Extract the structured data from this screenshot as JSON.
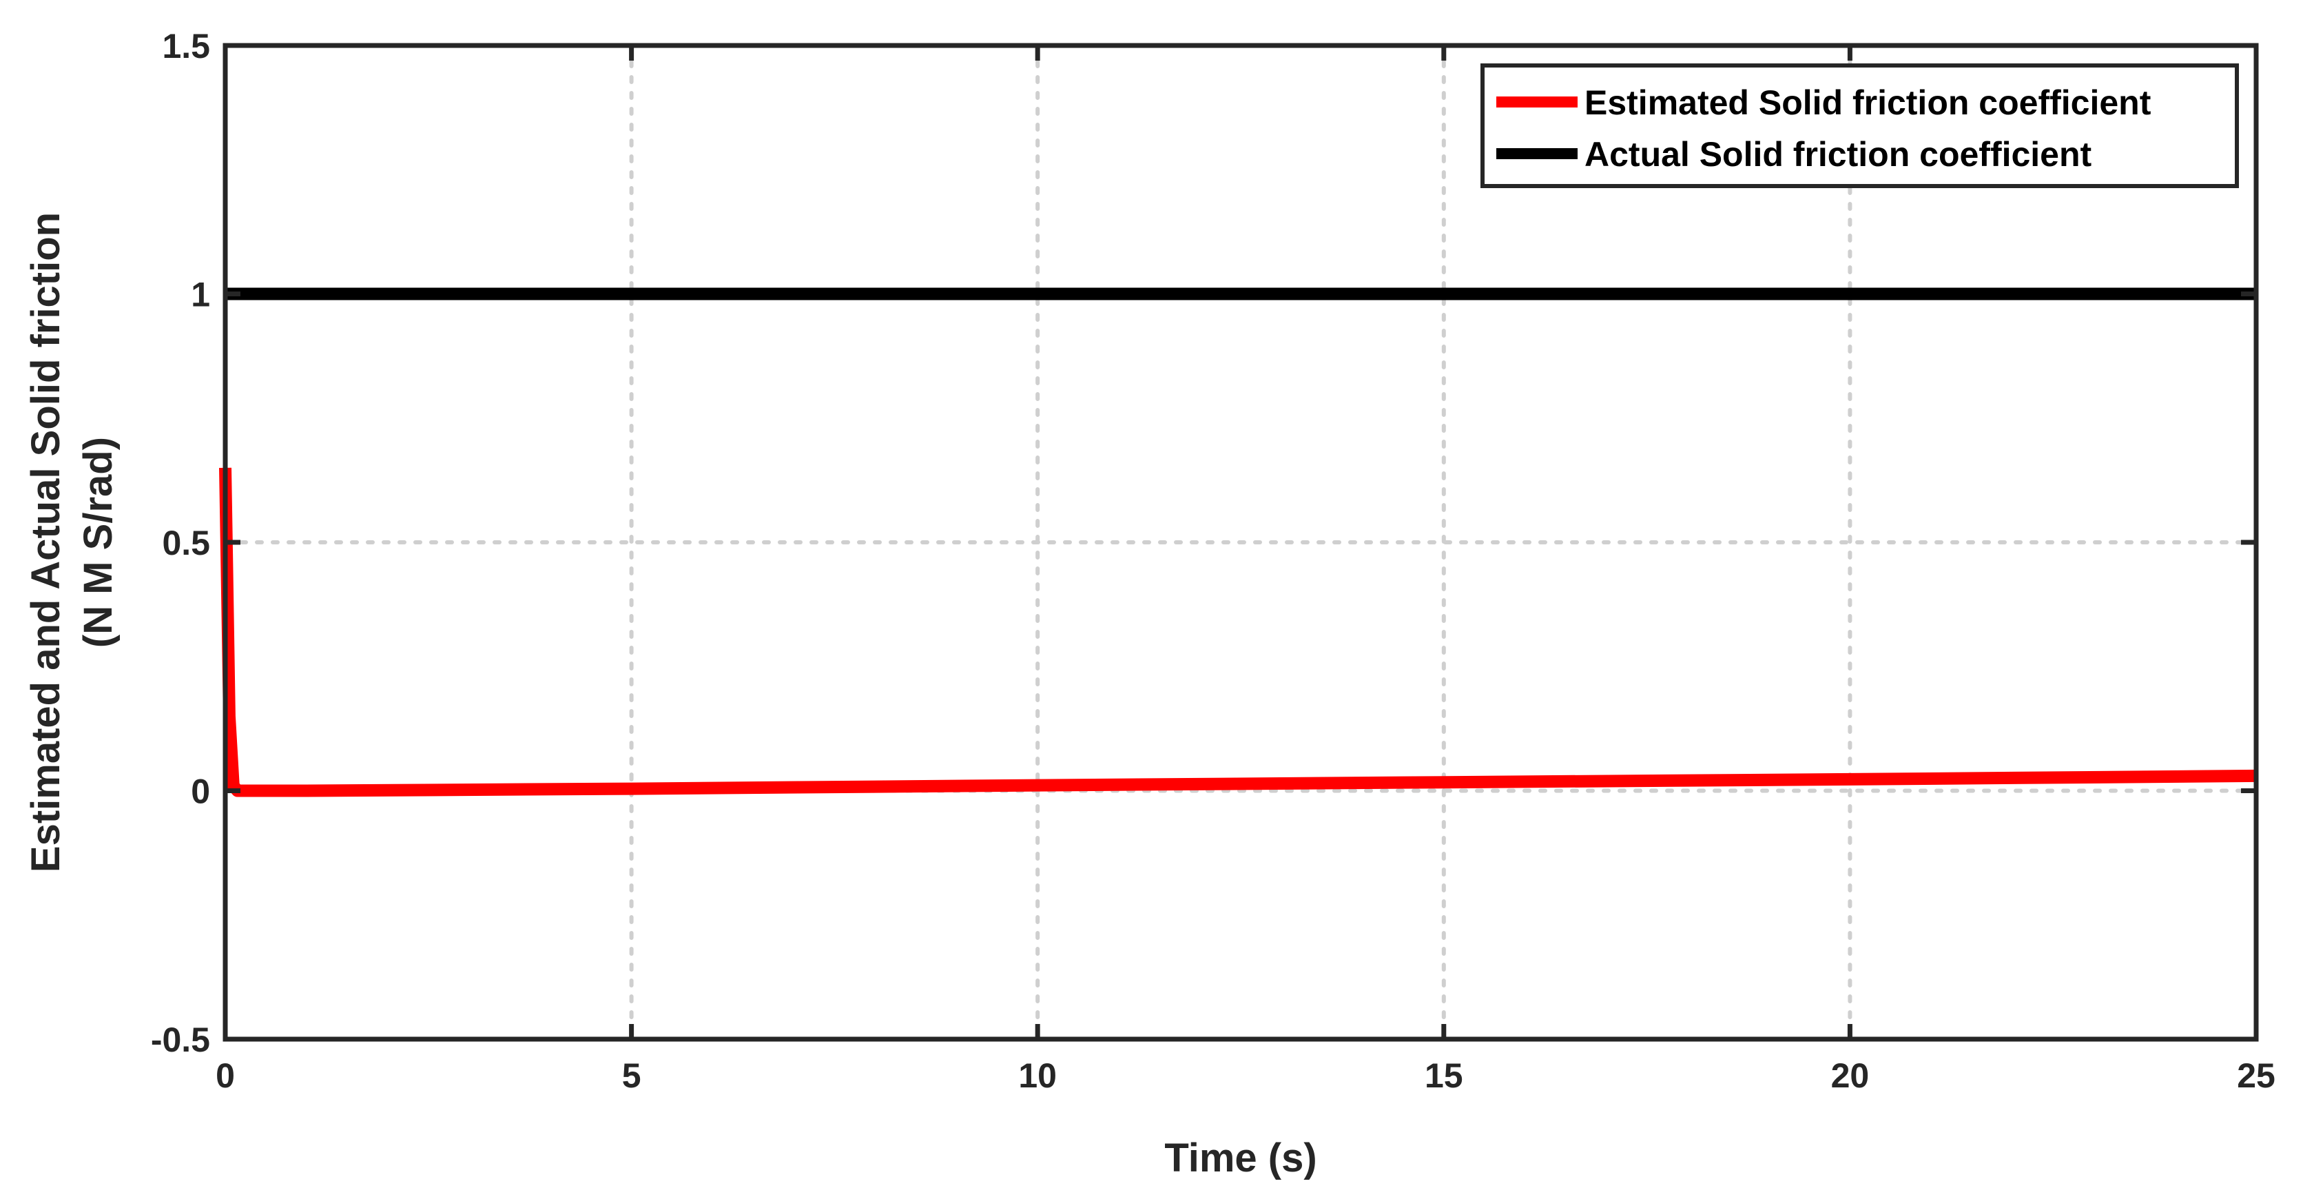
{
  "chart_data": {
    "type": "line",
    "title": "",
    "xlabel": "Time (s)",
    "ylabel": [
      "Estimated and Actual Solid friction",
      "(N M S/rad)"
    ],
    "xlim": [
      0,
      25
    ],
    "ylim": [
      -0.5,
      1.5
    ],
    "xticks": [
      0,
      5,
      10,
      15,
      20,
      25
    ],
    "yticks": [
      -0.5,
      0,
      0.5,
      1,
      1.5
    ],
    "xtick_labels": [
      "0",
      "5",
      "10",
      "15",
      "20",
      "25"
    ],
    "ytick_labels": [
      "-0.5",
      "0",
      "0.5",
      "1",
      "1.5"
    ],
    "grid": true,
    "legend_position": "top-right",
    "series": [
      {
        "name": "Estimated Solid friction coefficient",
        "color": "#ff0000",
        "x": [
          0,
          0.02,
          0.05,
          0.1,
          0.15,
          0.25,
          1,
          5,
          10,
          15,
          20,
          25
        ],
        "y": [
          0.65,
          0.45,
          0.15,
          0.01,
          0.0,
          0.0,
          0.0,
          0.004,
          0.011,
          0.017,
          0.023,
          0.03
        ]
      },
      {
        "name": "Actual Solid friction coefficient",
        "color": "#000000",
        "x": [
          0,
          25
        ],
        "y": [
          1,
          1
        ]
      }
    ]
  }
}
